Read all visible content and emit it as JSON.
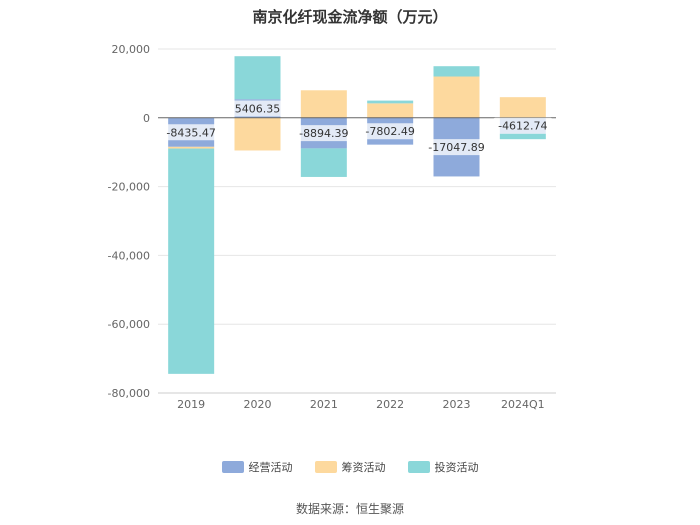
{
  "chart_data": {
    "type": "bar",
    "title": "南京化纤现金流净额（万元）",
    "categories": [
      "2019",
      "2020",
      "2021",
      "2022",
      "2023",
      "2024Q1"
    ],
    "series": [
      {
        "name": "经营活动",
        "color": "#8eaadb",
        "values": [
          -8435.47,
          5406.35,
          -8894.39,
          -7802.49,
          -17047.89,
          -4612.74
        ]
      },
      {
        "name": "筹资活动",
        "color": "#fdd99e",
        "values": [
          -500,
          -9500,
          8000,
          4200,
          12000,
          6000
        ]
      },
      {
        "name": "投资活动",
        "color": "#8ad7d9",
        "values": [
          -65500,
          12500,
          -8300,
          800,
          3000,
          -1600
        ]
      }
    ],
    "data_labels": [
      "-8435.47",
      "5406.35",
      "-8894.39",
      "-7802.49",
      "-17047.89",
      "-4612.74"
    ],
    "ylim": [
      -80000,
      20000
    ],
    "yticks": [
      {
        "value": 20000,
        "label": "20,000"
      },
      {
        "value": 0,
        "label": "0"
      },
      {
        "value": -20000,
        "label": "-20,000"
      },
      {
        "value": -40000,
        "label": "-40,000"
      },
      {
        "value": -60000,
        "label": "-60,000"
      },
      {
        "value": -80000,
        "label": "-80,000"
      }
    ],
    "grid": true,
    "legend_position": "bottom",
    "stacked": true
  },
  "source": "数据来源：恒生聚源"
}
